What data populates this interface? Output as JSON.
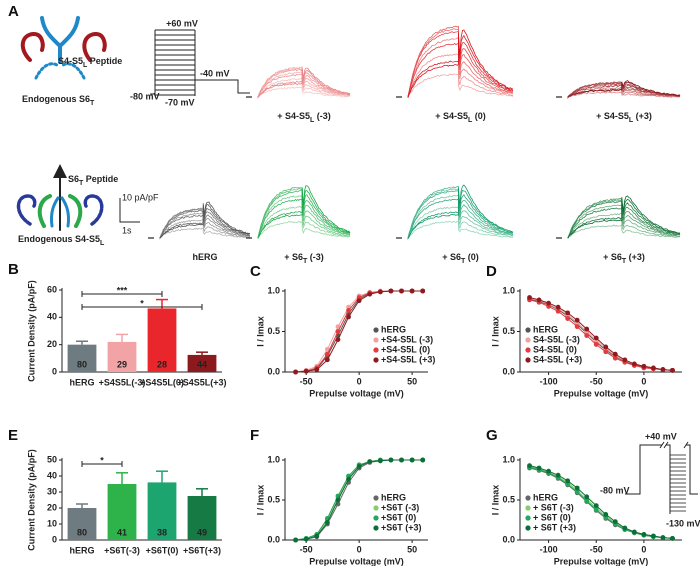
{
  "panel_a": {
    "panel_label": "A",
    "cartoon_top": {
      "peptide": [
        {
          "text": "S4-S5"
        },
        {
          "sub": "L"
        },
        {
          "text": " Peptide"
        }
      ],
      "endogenous": [
        {
          "text": "Endogenous S6"
        },
        {
          "sub": "T"
        }
      ]
    },
    "cartoon_bottom": {
      "peptide": [
        {
          "text": "S6"
        },
        {
          "sub": "T"
        },
        {
          "text": " Peptide"
        }
      ],
      "endogenous": [
        {
          "text": "Endogenous  S4-S5"
        },
        {
          "sub": "L"
        }
      ]
    },
    "protocol": {
      "top": "+60 mV",
      "step": "-40 mV",
      "holding": "-80 mV",
      "bottom": "-70 mV"
    },
    "scale_bar": {
      "current": "10 pA/pF",
      "time": "1s"
    },
    "traces": [
      [
        {
          "text": "+ S4-S5"
        },
        {
          "sub": "L"
        },
        {
          "text": " (-3)"
        }
      ],
      [
        {
          "text": "+ S4-S5"
        },
        {
          "sub": "L"
        },
        {
          "text": " (0)"
        }
      ],
      [
        {
          "text": "+ S4-S5"
        },
        {
          "sub": "L"
        },
        {
          "text": " (+3)"
        }
      ],
      [
        {
          "text": "hERG"
        }
      ],
      [
        {
          "text": "+ S6"
        },
        {
          "sub": "T"
        },
        {
          "text": " (-3)"
        }
      ],
      [
        {
          "text": "+ S6"
        },
        {
          "sub": "T"
        },
        {
          "text": " (0)"
        }
      ],
      [
        {
          "text": "+ S6"
        },
        {
          "sub": "T"
        },
        {
          "text": " (+3)"
        }
      ]
    ]
  },
  "chart_data": [
    {
      "type": "bar",
      "panel_label": "B",
      "categories": [
        "hERG",
        "+S4S5L(-3)",
        "+S4S5L(0)",
        "+S4S5L(+3)"
      ],
      "values": [
        20,
        22,
        46.5,
        12.5
      ],
      "errors": [
        2.5,
        5.5,
        6.5,
        2
      ],
      "n_labels": [
        80,
        29,
        28,
        44
      ],
      "colors": [
        "#6e7b80",
        "#f2a3a6",
        "#e8262b",
        "#8b1a1e"
      ],
      "ylabel": "Current Density (pA/pF)",
      "ylim": [
        0,
        60
      ],
      "yticks": [
        0,
        20,
        40,
        60
      ],
      "significance": [
        {
          "label": "***",
          "between": [
            "hERG",
            "+S4S5L(0)"
          ]
        },
        {
          "label": "*",
          "between": [
            "hERG",
            "+S4S5L(+3)"
          ]
        }
      ]
    },
    {
      "type": "line",
      "panel_label": "C",
      "x": [
        -60,
        -50,
        -40,
        -30,
        -20,
        -10,
        0,
        10,
        20,
        30,
        40,
        50,
        60
      ],
      "series": [
        {
          "name": "hERG",
          "color": "#555555",
          "values": [
            0,
            0.01,
            0.04,
            0.2,
            0.45,
            0.72,
            0.9,
            0.97,
            0.99,
            1,
            1,
            1,
            1
          ]
        },
        {
          "name": "+S4-S5L (-3)",
          "color": "#f4a0a3",
          "values": [
            0,
            0.02,
            0.07,
            0.28,
            0.56,
            0.8,
            0.94,
            0.98,
            1,
            1,
            1,
            1,
            1
          ]
        },
        {
          "name": "+S4-S5L (0)",
          "color": "#e33b3e",
          "values": [
            0,
            0.01,
            0.05,
            0.22,
            0.5,
            0.76,
            0.92,
            0.98,
            0.99,
            1,
            1,
            1,
            1
          ]
        },
        {
          "name": "+S4-S5L (+3)",
          "color": "#8e1b1f",
          "values": [
            0,
            0.01,
            0.03,
            0.15,
            0.4,
            0.68,
            0.88,
            0.96,
            0.99,
            1,
            1,
            1,
            1
          ]
        }
      ],
      "xlabel": "Prepulse voltage (mV)",
      "ylabel": "I / Imax",
      "xlim": [
        -70,
        65
      ],
      "xticks": [
        -50,
        0,
        50
      ],
      "ylim": [
        0,
        1
      ],
      "yticks": [
        {
          "value": 0,
          "label": "0.0"
        },
        {
          "value": 0.5,
          "label": "0.5"
        },
        {
          "value": 1,
          "label": "1.0"
        }
      ],
      "legend": "lower right"
    },
    {
      "type": "line",
      "panel_label": "D",
      "x": [
        -120,
        -110,
        -100,
        -90,
        -80,
        -70,
        -60,
        -50,
        -40,
        -30,
        -20,
        -10,
        0,
        10,
        20,
        30
      ],
      "series": [
        {
          "name": "hERG",
          "color": "#555555",
          "values": [
            0.9,
            0.87,
            0.83,
            0.77,
            0.69,
            0.59,
            0.48,
            0.37,
            0.27,
            0.19,
            0.13,
            0.09,
            0.06,
            0.04,
            0.03,
            0.02
          ]
        },
        {
          "name": "S4-S5L (-3)",
          "color": "#f4a0a3",
          "values": [
            0.91,
            0.88,
            0.84,
            0.78,
            0.71,
            0.61,
            0.5,
            0.39,
            0.29,
            0.2,
            0.14,
            0.1,
            0.07,
            0.05,
            0.03,
            0.02
          ]
        },
        {
          "name": "S4-S5L (0)",
          "color": "#e33b3e",
          "values": [
            0.89,
            0.86,
            0.81,
            0.75,
            0.66,
            0.56,
            0.45,
            0.34,
            0.25,
            0.17,
            0.12,
            0.08,
            0.05,
            0.04,
            0.03,
            0.02
          ]
        },
        {
          "name": "S4-S5L (+3)",
          "color": "#8e1b1f",
          "values": [
            0.92,
            0.89,
            0.85,
            0.8,
            0.73,
            0.64,
            0.53,
            0.42,
            0.31,
            0.22,
            0.15,
            0.1,
            0.07,
            0.05,
            0.03,
            0.02
          ]
        }
      ],
      "xlabel": "Prepulse voltage (mV)",
      "ylabel": "I / Imax",
      "xlim": [
        -130,
        40
      ],
      "xticks": [
        -100,
        -50,
        0
      ],
      "ylim": [
        0,
        1
      ],
      "yticks": [
        {
          "value": 0,
          "label": "0.0"
        },
        {
          "value": 0.5,
          "label": "0.5"
        },
        {
          "value": 1,
          "label": "1.0"
        }
      ],
      "legend": "lower left"
    },
    {
      "type": "bar",
      "panel_label": "E",
      "categories": [
        "hERG",
        "+S6T(-3)",
        "+S6T(0)",
        "+S6T(+3)"
      ],
      "values": [
        20,
        35,
        36,
        27.5
      ],
      "errors": [
        2.5,
        7,
        7,
        4.5
      ],
      "n_labels": [
        80,
        41,
        38,
        49
      ],
      "colors": [
        "#6e7b80",
        "#2db34a",
        "#1ca56f",
        "#167a45"
      ],
      "ylabel": "Current Density (pA/pF)",
      "ylim": [
        0,
        50
      ],
      "yticks": [
        0,
        10,
        20,
        30,
        40,
        50
      ],
      "significance": [
        {
          "label": "*",
          "between": [
            "hERG",
            "+S6T(-3)"
          ]
        }
      ]
    },
    {
      "type": "line",
      "panel_label": "F",
      "x": [
        -60,
        -50,
        -40,
        -30,
        -20,
        -10,
        0,
        10,
        20,
        30,
        40,
        50,
        60
      ],
      "series": [
        {
          "name": "hERG",
          "color": "#666666",
          "values": [
            0,
            0.01,
            0.04,
            0.2,
            0.45,
            0.72,
            0.9,
            0.97,
            0.99,
            1,
            1,
            1,
            1
          ]
        },
        {
          "name": "+S6T (-3)",
          "color": "#84cf6c",
          "values": [
            0,
            0.02,
            0.06,
            0.25,
            0.52,
            0.78,
            0.93,
            0.98,
            1,
            1,
            1,
            1,
            1
          ]
        },
        {
          "name": "+S6T (0)",
          "color": "#22a85a",
          "values": [
            0,
            0.02,
            0.07,
            0.27,
            0.55,
            0.8,
            0.94,
            0.98,
            1,
            1,
            1,
            1,
            1
          ]
        },
        {
          "name": "+S6T (+3)",
          "color": "#0d6e3a",
          "values": [
            0,
            0.01,
            0.05,
            0.22,
            0.5,
            0.76,
            0.92,
            0.98,
            0.99,
            1,
            1,
            1,
            1
          ]
        }
      ],
      "xlabel": "Prepulse voltage (mV)",
      "ylabel": "I / Imax",
      "xlim": [
        -70,
        65
      ],
      "xticks": [
        -50,
        0,
        50
      ],
      "ylim": [
        0,
        1
      ],
      "yticks": [
        {
          "value": 0,
          "label": "0.0"
        },
        {
          "value": 0.5,
          "label": "0.5"
        },
        {
          "value": 1,
          "label": "1.0"
        }
      ],
      "legend": "lower right"
    },
    {
      "type": "line",
      "panel_label": "G",
      "x": [
        -120,
        -110,
        -100,
        -90,
        -80,
        -70,
        -60,
        -50,
        -40,
        -30,
        -20,
        -10,
        0,
        10,
        20,
        30
      ],
      "series": [
        {
          "name": "hERG",
          "color": "#666666",
          "values": [
            0.9,
            0.87,
            0.83,
            0.77,
            0.69,
            0.59,
            0.48,
            0.37,
            0.27,
            0.19,
            0.13,
            0.09,
            0.06,
            0.04,
            0.03,
            0.02
          ]
        },
        {
          "name": "+ S6T (-3)",
          "color": "#84cf6c",
          "values": [
            0.92,
            0.89,
            0.85,
            0.79,
            0.72,
            0.62,
            0.51,
            0.4,
            0.3,
            0.21,
            0.14,
            0.1,
            0.07,
            0.05,
            0.03,
            0.02
          ]
        },
        {
          "name": "+ S6T (0)",
          "color": "#22a85a",
          "values": [
            0.91,
            0.88,
            0.84,
            0.78,
            0.7,
            0.6,
            0.49,
            0.38,
            0.28,
            0.2,
            0.13,
            0.09,
            0.06,
            0.04,
            0.03,
            0.02
          ]
        },
        {
          "name": "+ S6T (+3)",
          "color": "#0d6e3a",
          "values": [
            0.93,
            0.9,
            0.86,
            0.81,
            0.74,
            0.65,
            0.54,
            0.43,
            0.32,
            0.23,
            0.15,
            0.1,
            0.07,
            0.05,
            0.03,
            0.02
          ]
        }
      ],
      "xlabel": "Prepulse voltage (mV)",
      "ylabel": "I / Imax",
      "xlim": [
        -130,
        40
      ],
      "xticks": [
        -100,
        -50,
        0
      ],
      "ylim": [
        0,
        1
      ],
      "yticks": [
        {
          "value": 0,
          "label": "0.0"
        },
        {
          "value": 0.5,
          "label": "0.5"
        },
        {
          "value": 1,
          "label": "1.0"
        }
      ],
      "legend": "lower left",
      "annotations": [
        "+40 mV",
        "-80 mV",
        "-130 mV"
      ]
    }
  ]
}
